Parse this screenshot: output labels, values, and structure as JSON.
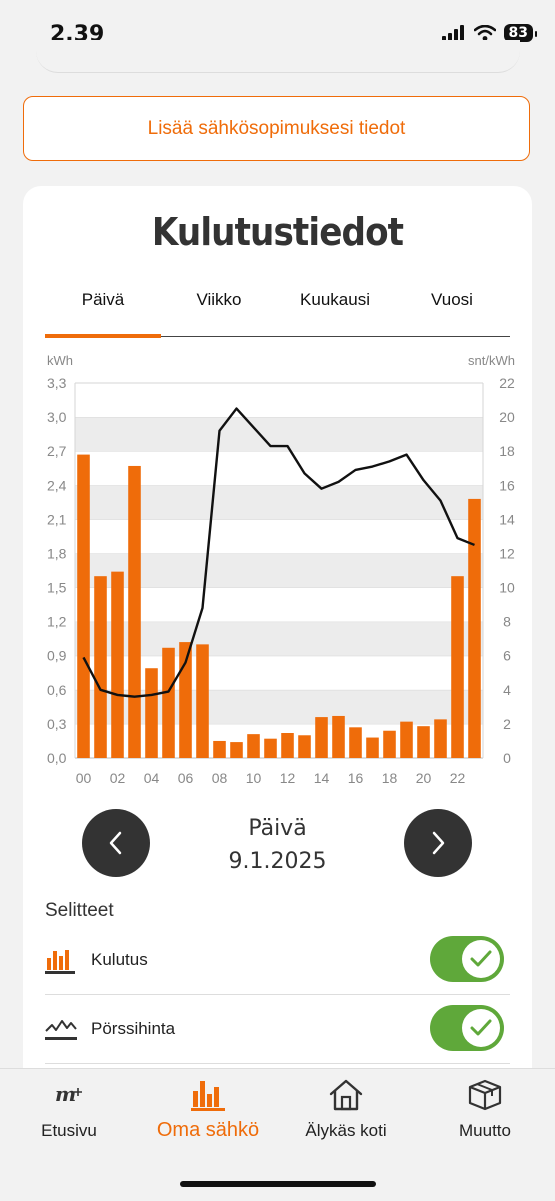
{
  "status": {
    "time": "2.39",
    "battery": "83"
  },
  "contract_button": {
    "label": "Lisää sähkösopimuksesi tiedot"
  },
  "card": {
    "title": "Kulutustiedot"
  },
  "tabs": [
    {
      "label": "Päivä",
      "active": true
    },
    {
      "label": "Viikko",
      "active": false
    },
    {
      "label": "Kuukausi",
      "active": false
    },
    {
      "label": "Vuosi",
      "active": false
    }
  ],
  "colors": {
    "accent": "#ef6c0a",
    "toggle": "#5fa83a",
    "dark": "#333333"
  },
  "chart_data": {
    "type": "bar",
    "left_unit": "kWh",
    "right_unit": "snt/kWh",
    "left_ylim": [
      0,
      3.3
    ],
    "right_ylim": [
      0,
      22
    ],
    "left_ticks": [
      "0,0",
      "0,3",
      "0,6",
      "0,9",
      "1,2",
      "1,5",
      "1,8",
      "2,1",
      "2,4",
      "2,7",
      "3,0",
      "3,3"
    ],
    "right_ticks": [
      "0",
      "2",
      "4",
      "6",
      "8",
      "10",
      "12",
      "14",
      "16",
      "18",
      "20",
      "22"
    ],
    "x_ticks": [
      "00",
      "02",
      "04",
      "06",
      "08",
      "10",
      "12",
      "14",
      "16",
      "18",
      "20",
      "22"
    ],
    "hours": [
      0,
      1,
      2,
      3,
      4,
      5,
      6,
      7,
      8,
      9,
      10,
      11,
      12,
      13,
      14,
      15,
      16,
      17,
      18,
      19,
      20,
      21,
      22,
      23
    ],
    "series": [
      {
        "name": "Kulutus",
        "type": "bar",
        "axis": "left",
        "values": [
          2.67,
          1.6,
          1.64,
          2.57,
          0.79,
          0.97,
          1.02,
          1.0,
          0.15,
          0.14,
          0.21,
          0.17,
          0.22,
          0.2,
          0.36,
          0.37,
          0.27,
          0.18,
          0.24,
          0.32,
          0.28,
          0.34,
          1.6,
          2.28
        ]
      },
      {
        "name": "Pörssihinta",
        "type": "line",
        "axis": "right",
        "values": [
          5.9,
          4.0,
          3.7,
          3.6,
          3.7,
          3.9,
          5.6,
          8.8,
          19.2,
          20.5,
          19.4,
          18.3,
          18.3,
          16.7,
          15.8,
          16.2,
          16.9,
          17.1,
          17.4,
          17.8,
          16.3,
          15.1,
          12.9,
          12.5
        ]
      }
    ]
  },
  "period": {
    "label": "Päivä",
    "date": "9.1.2025"
  },
  "legend": {
    "title": "Selitteet",
    "items": [
      {
        "label": "Kulutus",
        "icon": "bar-chart-icon",
        "enabled": true
      },
      {
        "label": "Pörssihinta",
        "icon": "line-chart-icon",
        "enabled": true
      }
    ]
  },
  "bottom_nav": [
    {
      "label": "Etusivu",
      "icon": "brand-logo-icon",
      "active": false
    },
    {
      "label": "Oma sähkö",
      "icon": "bar-chart-icon",
      "active": true
    },
    {
      "label": "Älykäs koti",
      "icon": "house-icon",
      "active": false
    },
    {
      "label": "Muutto",
      "icon": "box-icon",
      "active": false
    }
  ]
}
